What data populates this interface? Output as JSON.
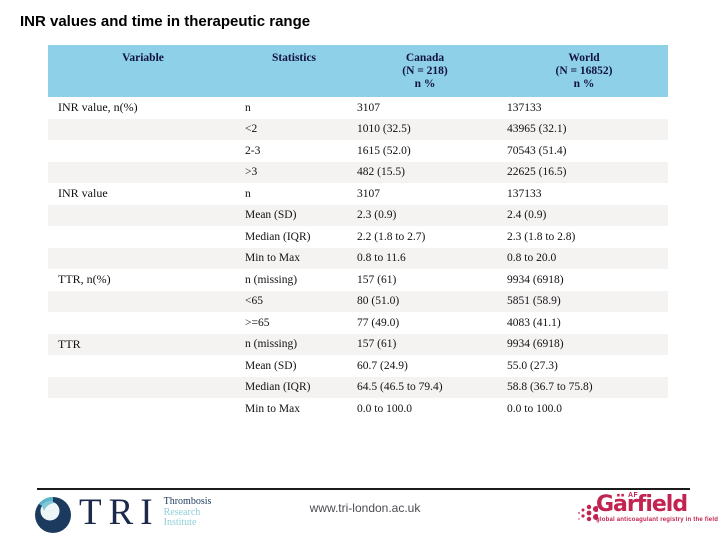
{
  "slide": {
    "title": "INR values and time in therapeutic range"
  },
  "table": {
    "columns": [
      {
        "label": "Variable",
        "sub1": "",
        "sub2": ""
      },
      {
        "label": "Statistics",
        "sub1": "",
        "sub2": ""
      },
      {
        "label": "Canada",
        "sub1": "(N = 218)",
        "sub2": "n %"
      },
      {
        "label": "World",
        "sub1": "(N = 16852)",
        "sub2": "n %"
      }
    ],
    "rows": [
      {
        "variable": "INR value, n(%)",
        "statistic": "n",
        "canada": "3107",
        "world": "137133"
      },
      {
        "variable": "",
        "statistic": "<2",
        "canada": "1010 (32.5)",
        "world": "43965 (32.1)"
      },
      {
        "variable": "",
        "statistic": "2-3",
        "canada": "1615 (52.0)",
        "world": "70543 (51.4)"
      },
      {
        "variable": "",
        "statistic": ">3",
        "canada": "482 (15.5)",
        "world": "22625 (16.5)"
      },
      {
        "variable": "INR value",
        "statistic": "n",
        "canada": "3107",
        "world": "137133"
      },
      {
        "variable": "",
        "statistic": "Mean (SD)",
        "canada": "2.3 (0.9)",
        "world": "2.4 (0.9)"
      },
      {
        "variable": "",
        "statistic": "Median (IQR)",
        "canada": "2.2 (1.8 to 2.7)",
        "world": "2.3 (1.8 to 2.8)"
      },
      {
        "variable": "",
        "statistic": "Min to Max",
        "canada": "0.8 to 11.6",
        "world": "0.8 to 20.0"
      },
      {
        "variable": "TTR, n(%)",
        "statistic": "n (missing)",
        "canada": "157 (61)",
        "world": "9934 (6918)"
      },
      {
        "variable": "",
        "statistic": "<65",
        "canada": "80 (51.0)",
        "world": "5851 (58.9)"
      },
      {
        "variable": "",
        "statistic": ">=65",
        "canada": "77 (49.0)",
        "world": "4083 (41.1)"
      },
      {
        "variable": "TTR",
        "statistic": "n (missing)",
        "canada": "157 (61)",
        "world": "9934 (6918)"
      },
      {
        "variable": "",
        "statistic": "Mean (SD)",
        "canada": "60.7 (24.9)",
        "world": "55.0 (27.3)"
      },
      {
        "variable": "",
        "statistic": "Median (IQR)",
        "canada": "64.5 (46.5 to 79.4)",
        "world": "58.8 (36.7 to 75.8)"
      },
      {
        "variable": "",
        "statistic": "Min to Max",
        "canada": "0.0 to 100.0",
        "world": "0.0 to 100.0"
      }
    ]
  },
  "footer": {
    "website": "www.tri-london.ac.uk",
    "tri_logo": {
      "acronym": "TRI",
      "line1": "Thrombosis",
      "line2": "Research",
      "line3": "Institute"
    },
    "garfield_logo": {
      "superscript": "AF",
      "name": "Gärfield",
      "tagline": "global anticoagulant registry in the field"
    }
  },
  "colors": {
    "header_bg": "#8dd0e7",
    "header_text": "#12123f",
    "row_stripe": "#f5f2f2",
    "garfield_crimson": "#c22350",
    "tri_navy": "#1b2a4a",
    "tri_teal": "#8ecfd6"
  }
}
